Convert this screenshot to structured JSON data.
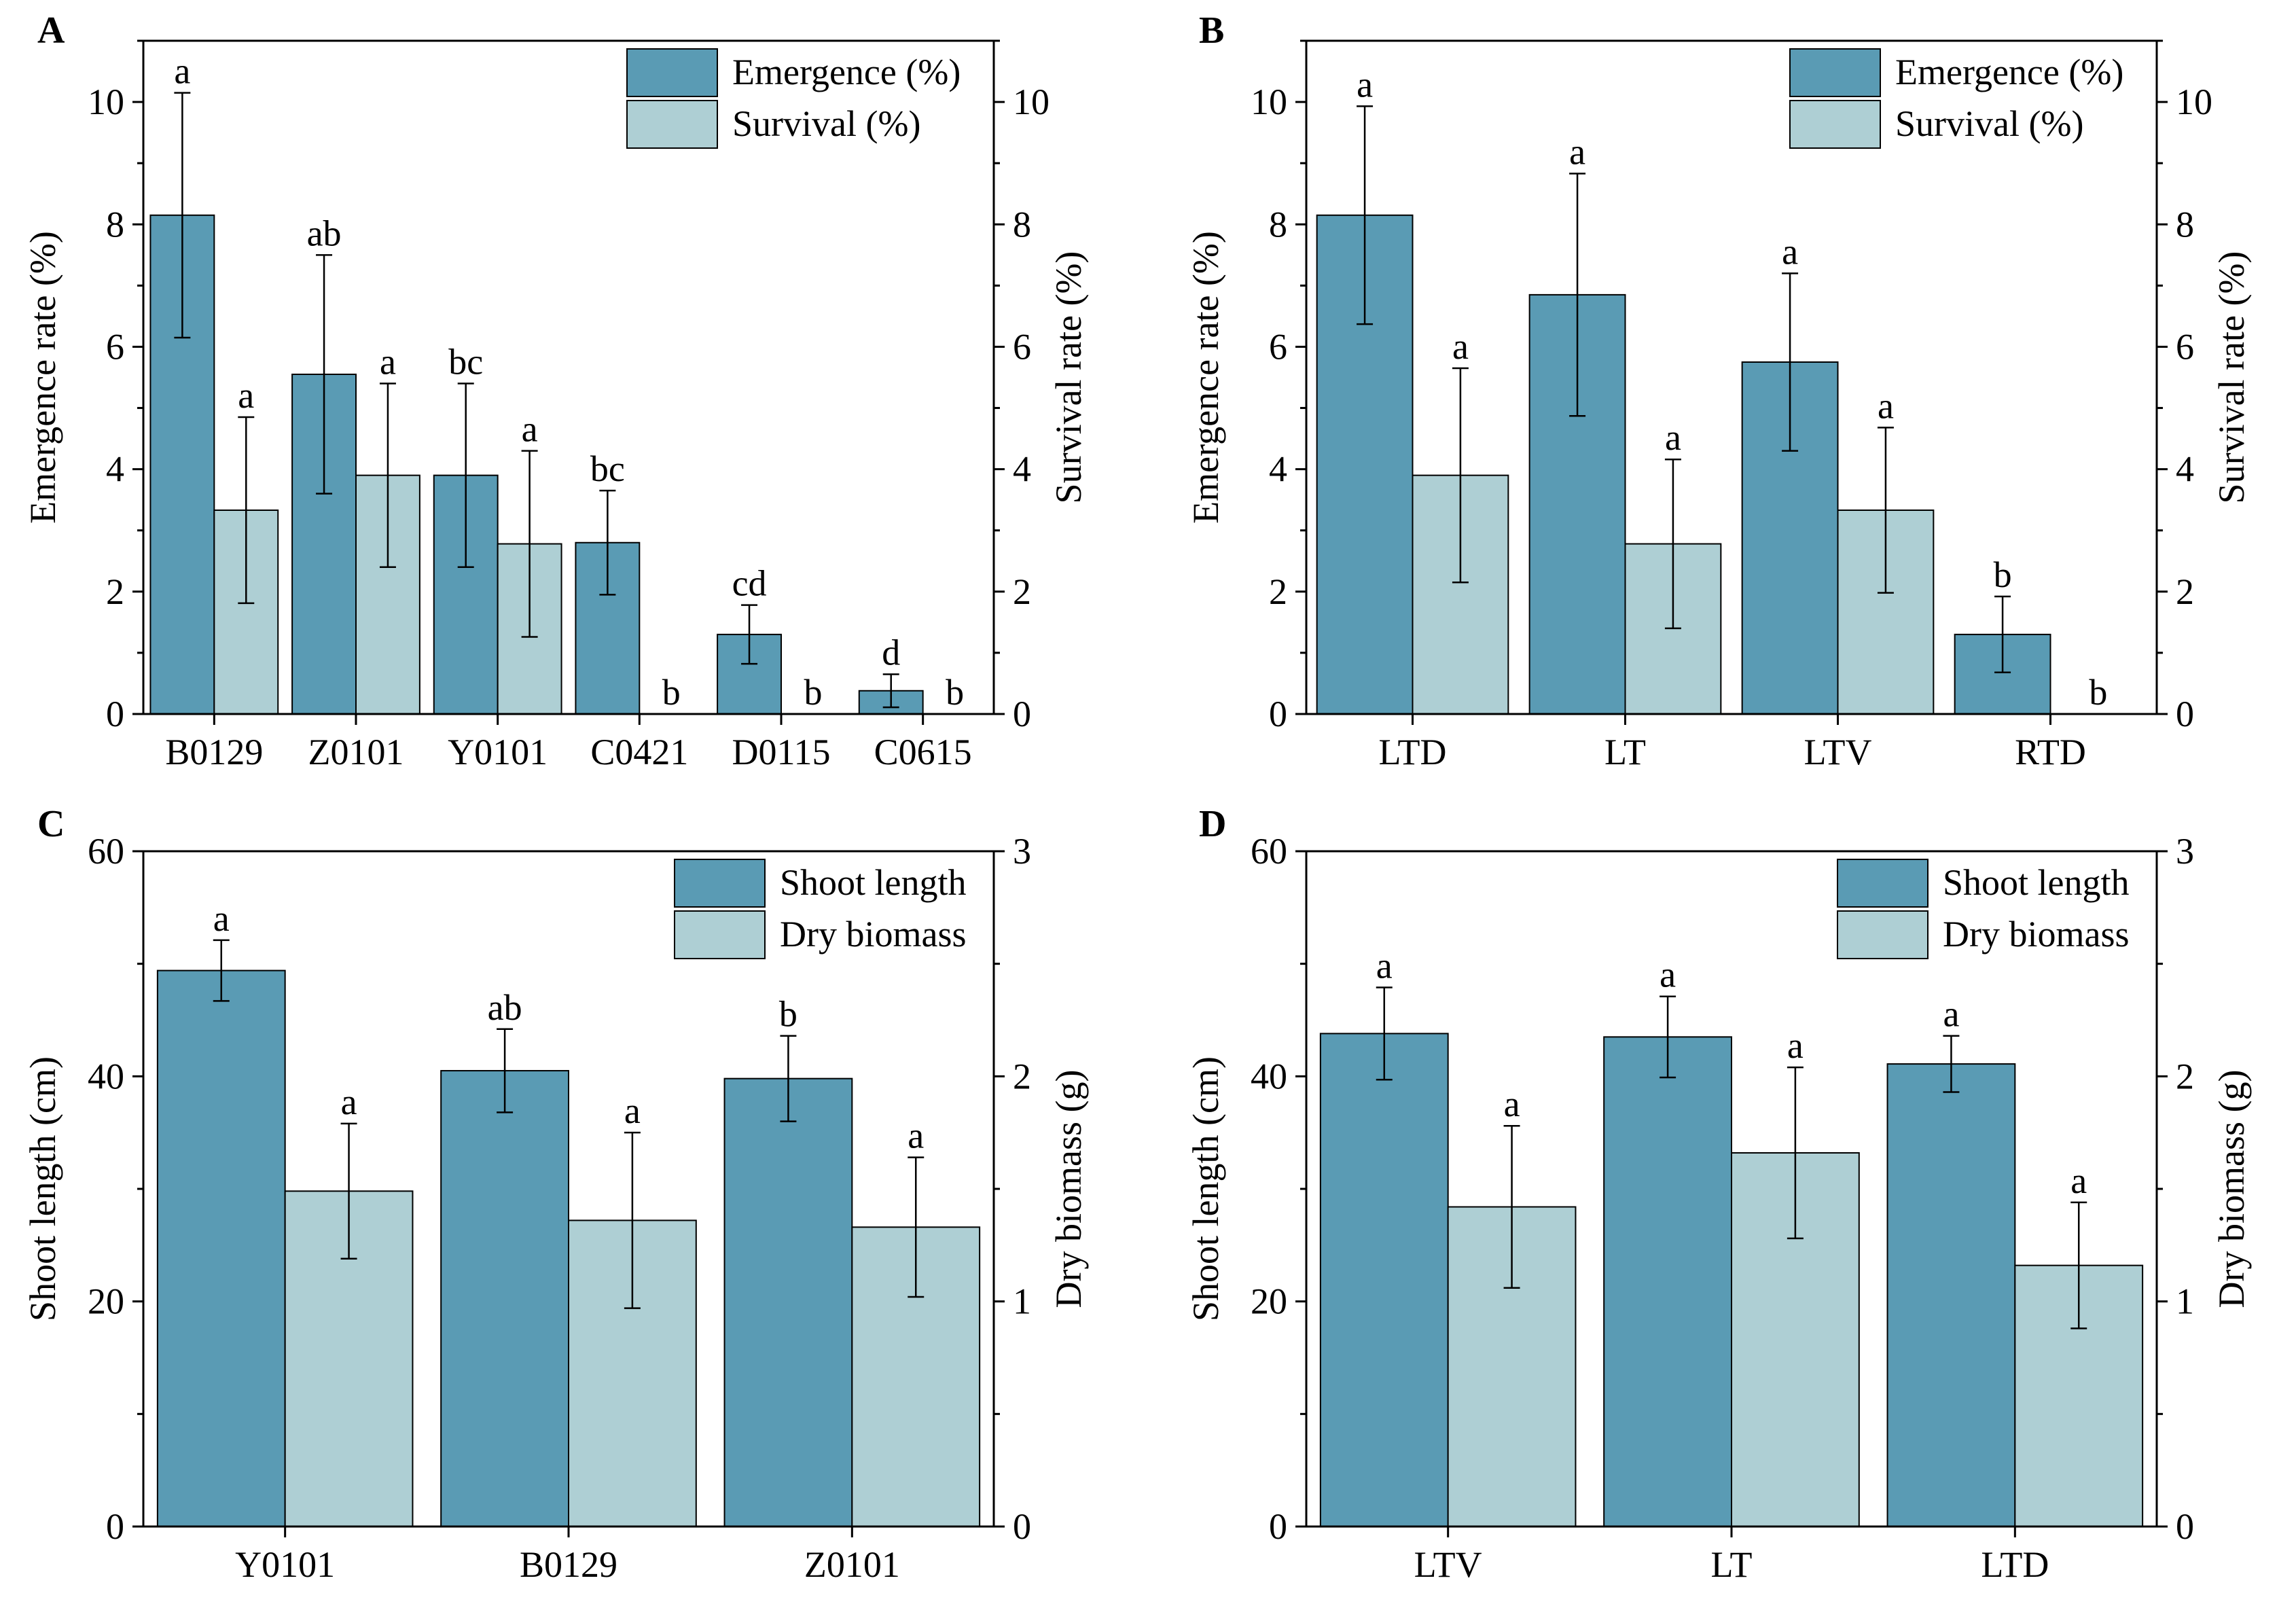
{
  "colors": {
    "primary": "#5a9bb4",
    "secondary": "#aecfd4",
    "stroke": "#000000"
  },
  "chart_data": [
    {
      "panel": "A",
      "type": "bar",
      "categories": [
        "B0129",
        "Z0101",
        "Y0101",
        "C0421",
        "D0115",
        "C0615"
      ],
      "ylabel_left": "Emergence rate (%)",
      "ylabel_right": "Survival rate (%)",
      "ylim_left": [
        0,
        11
      ],
      "ylim_right": [
        0,
        11
      ],
      "yticks_left": [
        "0",
        "2",
        "4",
        "6",
        "8",
        "10"
      ],
      "yticks_right": [
        "0",
        "2",
        "4",
        "6",
        "8",
        "10"
      ],
      "ytick_values": [
        0,
        2,
        4,
        6,
        8,
        10
      ],
      "legend_position": "top-right",
      "series": [
        {
          "name": "Emergence (%)",
          "axis": "left",
          "values": [
            8.15,
            5.55,
            3.9,
            2.8,
            1.3,
            0.38
          ],
          "errors": [
            2.0,
            1.95,
            1.5,
            0.85,
            0.48,
            0.27
          ],
          "letters": [
            "a",
            "ab",
            "bc",
            "bc",
            "cd",
            "d"
          ]
        },
        {
          "name": "Survival (%)",
          "axis": "right",
          "values": [
            3.33,
            3.9,
            2.78,
            0,
            0,
            0
          ],
          "errors": [
            1.52,
            1.5,
            1.52,
            0,
            0,
            0
          ],
          "letters": [
            "a",
            "a",
            "a",
            "b",
            "b",
            "b"
          ]
        }
      ]
    },
    {
      "panel": "B",
      "type": "bar",
      "categories": [
        "LTD",
        "LT",
        "LTV",
        "RTD"
      ],
      "ylabel_left": "Emergence rate (%)",
      "ylabel_right": "Survival rate (%)",
      "ylim_left": [
        0,
        11
      ],
      "ylim_right": [
        0,
        11
      ],
      "yticks_left": [
        "0",
        "2",
        "4",
        "6",
        "8",
        "10"
      ],
      "yticks_right": [
        "0",
        "2",
        "4",
        "6",
        "8",
        "10"
      ],
      "ytick_values": [
        0,
        2,
        4,
        6,
        8,
        10
      ],
      "legend_position": "top-right",
      "series": [
        {
          "name": "Emergence (%)",
          "axis": "left",
          "values": [
            8.15,
            6.85,
            5.75,
            1.3
          ],
          "errors": [
            1.78,
            1.98,
            1.45,
            0.62
          ],
          "letters": [
            "a",
            "a",
            "a",
            "b"
          ]
        },
        {
          "name": "Survival (%)",
          "axis": "right",
          "values": [
            3.9,
            2.78,
            3.33,
            0
          ],
          "errors": [
            1.75,
            1.38,
            1.35,
            0
          ],
          "letters": [
            "a",
            "a",
            "a",
            "b"
          ]
        }
      ]
    },
    {
      "panel": "C",
      "type": "bar",
      "categories": [
        "Y0101",
        "B0129",
        "Z0101"
      ],
      "ylabel_left": "Shoot length (cm)",
      "ylabel_right": "Dry biomass (g)",
      "ylim_left": [
        0,
        60
      ],
      "ylim_right": [
        0,
        3
      ],
      "yticks_left": [
        "0",
        "20",
        "40",
        "60"
      ],
      "yticks_right": [
        "0",
        "1",
        "2",
        "3"
      ],
      "ytick_values": [
        0,
        20,
        40,
        60
      ],
      "legend_position": "top-right",
      "series": [
        {
          "name": "Shoot length",
          "axis": "left",
          "values": [
            49.4,
            40.5,
            39.8
          ],
          "errors": [
            2.7,
            3.7,
            3.8
          ],
          "letters": [
            "a",
            "ab",
            "b"
          ]
        },
        {
          "name": "Dry biomass",
          "axis": "right",
          "values": [
            1.49,
            1.36,
            1.33
          ],
          "errors": [
            0.3,
            0.39,
            0.31
          ],
          "letters": [
            "a",
            "a",
            "a"
          ]
        }
      ]
    },
    {
      "panel": "D",
      "type": "bar",
      "categories": [
        "LTV",
        "LT",
        "LTD"
      ],
      "ylabel_left": "Shoot length (cm)",
      "ylabel_right": "Dry biomass (g)",
      "ylim_left": [
        0,
        60
      ],
      "ylim_right": [
        0,
        3
      ],
      "yticks_left": [
        "0",
        "20",
        "40",
        "60"
      ],
      "yticks_right": [
        "0",
        "1",
        "2",
        "3"
      ],
      "ytick_values": [
        0,
        20,
        40,
        60
      ],
      "legend_position": "top-right",
      "series": [
        {
          "name": "Shoot length",
          "axis": "left",
          "values": [
            43.8,
            43.5,
            41.1
          ],
          "errors": [
            4.1,
            3.6,
            2.5
          ],
          "letters": [
            "a",
            "a",
            "a"
          ]
        },
        {
          "name": "Dry biomass",
          "axis": "right",
          "values": [
            1.42,
            1.66,
            1.16
          ],
          "errors": [
            0.36,
            0.38,
            0.28
          ],
          "letters": [
            "a",
            "a",
            "a"
          ]
        }
      ]
    }
  ]
}
